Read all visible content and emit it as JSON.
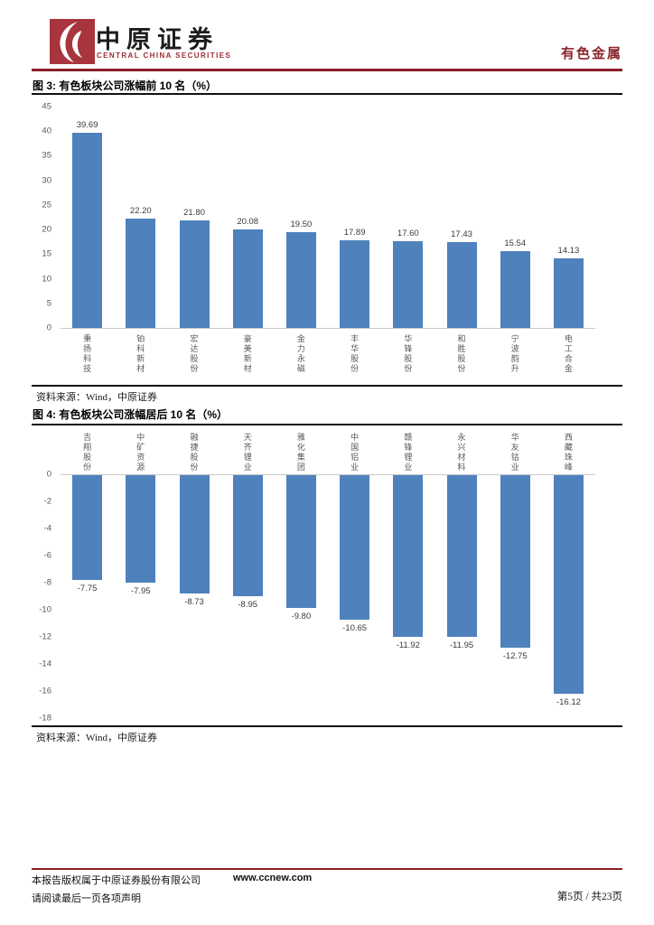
{
  "brand": {
    "cn_name": "中原证券",
    "en_name": "CENTRAL CHINA SECURITIES"
  },
  "header": {
    "doc_category": "有色金属"
  },
  "figures": [
    {
      "title": "图 3: 有色板块公司涨幅前 10 名（%）",
      "source": "资料来源：Wind，中原证券"
    },
    {
      "title": "图 4: 有色板块公司涨幅居后 10 名（%）",
      "source": "资料来源：Wind，中原证券"
    }
  ],
  "colors": {
    "bar_blue": "#4f81bd",
    "accent_red": "#8c1f28",
    "logo_red": "#a8353e"
  },
  "footer": {
    "line1": "本报告版权属于中原证券股份有限公司",
    "url": "www.ccnew.com",
    "line2": "请阅读最后一页各项声明",
    "page_info": "第5页 / 共23页"
  },
  "chart_data": [
    {
      "type": "bar",
      "title": "有色板块公司涨幅前10名（%）",
      "categories": [
        "秉扬科技",
        "铂科新材",
        "宏达股份",
        "豪美新材",
        "金力永磁",
        "丰华股份",
        "华锋股份",
        "和胜股份",
        "宁波韵升",
        "电工合金"
      ],
      "values": [
        39.69,
        22.2,
        21.8,
        20.08,
        19.5,
        17.89,
        17.6,
        17.43,
        15.54,
        14.13
      ],
      "value_labels": [
        "39.69",
        "22.20",
        "21.80",
        "20.08",
        "19.50",
        "17.89",
        "17.60",
        "17.43",
        "15.54",
        "14.13"
      ],
      "xlabel": "",
      "ylabel": "",
      "ylim": [
        0,
        45
      ],
      "yticks": [
        45,
        40,
        35,
        30,
        25,
        20,
        15,
        10,
        5,
        0
      ],
      "grid": false,
      "legend": "none",
      "bar_color": "#4f81bd"
    },
    {
      "type": "bar",
      "title": "有色板块公司涨幅居后10名（%）",
      "categories": [
        "吉翔股份",
        "中矿资源",
        "融捷股份",
        "天齐锂业",
        "雅化集团",
        "中国铝业",
        "赣锋锂业",
        "永兴材料",
        "华友钴业",
        "西藏珠峰"
      ],
      "values": [
        -7.75,
        -7.95,
        -8.73,
        -8.95,
        -9.8,
        -10.65,
        -11.92,
        -11.95,
        -12.75,
        -16.12
      ],
      "value_labels": [
        "-7.75",
        "-7.95",
        "-8.73",
        "-8.95",
        "-9.80",
        "-10.65",
        "-11.92",
        "-11.95",
        "-12.75",
        "-16.12"
      ],
      "xlabel": "",
      "ylabel": "",
      "ylim": [
        -18,
        0
      ],
      "yticks": [
        0,
        -2,
        -4,
        -6,
        -8,
        -10,
        -12,
        -14,
        -16,
        -18
      ],
      "grid": false,
      "legend": "none",
      "bar_color": "#4f81bd"
    }
  ]
}
